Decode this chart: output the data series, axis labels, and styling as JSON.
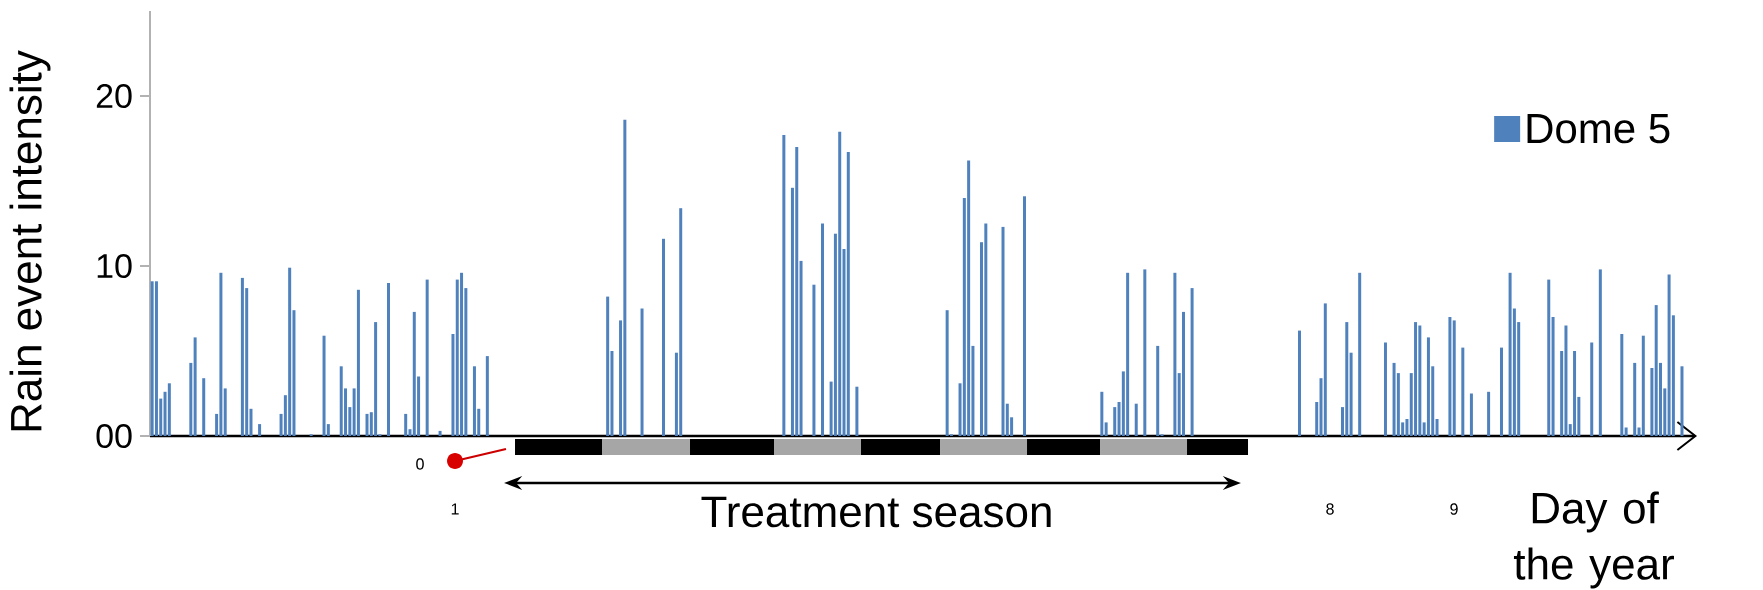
{
  "chart_data": {
    "type": "bar",
    "ylabel": "Rain event intensity",
    "xlabel": "Day of the year",
    "annotations": [
      "Treatment season",
      "0",
      "1",
      "8",
      "9"
    ],
    "categories": [
      null,
      null,
      null,
      null,
      null,
      null,
      null,
      null,
      null,
      null,
      null,
      null,
      null,
      null,
      null,
      null,
      null,
      null,
      null,
      null,
      null,
      null,
      null,
      null,
      null,
      null,
      null,
      null,
      null,
      null,
      null,
      null,
      null,
      null,
      null,
      null,
      null,
      null,
      null,
      null,
      null,
      null,
      null,
      null,
      null,
      null,
      null,
      null,
      null,
      null,
      null,
      null,
      null,
      null,
      null,
      null,
      null,
      null,
      null,
      null,
      null,
      null,
      null,
      null,
      null,
      null,
      null,
      null,
      null,
      null,
      null,
      null,
      null,
      null,
      null,
      null,
      null,
      null,
      null,
      null,
      null,
      null,
      null,
      null,
      null,
      null,
      null,
      null,
      null,
      null,
      null,
      null,
      null,
      null,
      null,
      null,
      null,
      null,
      null,
      null,
      null,
      null,
      null,
      null,
      null,
      null,
      null,
      null,
      null,
      null,
      null,
      null,
      null,
      null,
      null,
      null,
      null,
      null,
      null,
      null,
      null,
      null,
      null,
      null,
      null,
      null,
      null,
      null,
      null,
      null,
      null,
      null,
      null,
      null,
      null,
      null,
      null,
      null,
      null,
      null,
      null,
      null,
      null,
      null,
      null,
      null,
      null,
      null,
      null,
      null,
      null,
      null,
      null,
      null,
      null,
      null,
      null,
      null,
      null,
      null,
      null,
      null,
      null,
      null,
      null,
      null,
      null,
      null,
      null,
      null,
      null,
      null,
      null,
      null,
      null,
      null,
      null,
      null,
      null,
      null,
      null,
      null,
      null,
      null,
      null,
      null,
      null,
      null,
      null,
      null,
      null,
      null,
      null,
      null,
      null,
      null,
      null,
      null,
      null,
      null,
      null,
      null,
      null,
      null,
      null,
      null,
      null,
      null,
      null,
      null,
      null,
      null,
      null,
      null,
      null,
      null,
      null,
      null,
      null,
      null,
      null,
      null,
      null,
      null,
      null,
      null,
      null,
      null,
      null,
      null,
      null,
      null,
      null,
      null,
      null,
      null,
      null,
      null,
      null,
      null,
      null,
      null,
      null,
      null,
      null,
      null,
      null,
      null,
      null,
      null,
      null,
      null,
      null,
      null,
      null,
      null,
      null,
      null,
      null,
      null,
      null,
      null,
      null,
      null,
      null,
      null,
      null,
      null,
      null,
      null,
      null,
      null,
      null,
      null,
      null,
      null,
      null,
      null,
      null,
      null,
      null,
      null,
      null,
      null,
      null,
      null,
      null,
      null,
      null,
      null,
      null,
      null,
      null,
      null,
      null,
      null,
      null,
      null,
      null,
      null,
      null,
      null,
      null,
      null,
      null,
      null,
      null,
      null,
      null,
      null,
      null,
      null,
      null,
      null,
      null,
      null,
      null,
      null,
      null,
      null,
      null,
      null,
      null,
      null,
      null,
      null,
      null,
      null,
      null,
      null,
      null,
      null,
      null,
      null,
      null,
      null,
      null,
      null,
      null,
      null,
      null,
      null,
      null,
      null,
      null,
      null,
      null,
      null,
      null,
      null,
      null,
      null,
      null,
      null,
      null,
      null,
      null,
      null,
      null,
      null
    ],
    "series": [
      {
        "name": "Dome 5",
        "color": "#4f81bd",
        "values": [
          9.1,
          9.1,
          2.2,
          2.6,
          3.1,
          null,
          null,
          null,
          null,
          4.3,
          5.8,
          null,
          3.4,
          null,
          null,
          1.3,
          9.6,
          2.8,
          null,
          null,
          null,
          9.3,
          8.7,
          1.6,
          null,
          0.7,
          null,
          null,
          null,
          null,
          1.3,
          2.4,
          9.9,
          7.4,
          null,
          null,
          null,
          0.1,
          null,
          null,
          5.9,
          0.7,
          null,
          null,
          4.1,
          2.8,
          1.7,
          2.8,
          8.6,
          null,
          1.3,
          1.4,
          6.7,
          0.1,
          null,
          9.0,
          null,
          null,
          null,
          1.3,
          0.4,
          7.3,
          3.5,
          null,
          9.2,
          null,
          null,
          0.3,
          null,
          null,
          6.0,
          9.2,
          9.6,
          8.7,
          null,
          4.1,
          1.6,
          null,
          4.7,
          null,
          null,
          null,
          null,
          null,
          null,
          null,
          null,
          null,
          null,
          null,
          null,
          null,
          null,
          null,
          null,
          null,
          null,
          null,
          null,
          null,
          null,
          null,
          null,
          null,
          null,
          null,
          8.2,
          5.0,
          null,
          6.8,
          18.6,
          null,
          null,
          null,
          7.5,
          null,
          null,
          null,
          null,
          11.6,
          null,
          null,
          4.9,
          13.4,
          null,
          null,
          null,
          null,
          null,
          null,
          null,
          null,
          null,
          null,
          null,
          null,
          null,
          null,
          null,
          null,
          null,
          null,
          null,
          null,
          null,
          null,
          null,
          17.7,
          null,
          14.6,
          17.0,
          10.3,
          null,
          null,
          8.9,
          null,
          12.5,
          null,
          3.2,
          11.9,
          17.9,
          11.0,
          16.7,
          null,
          2.9,
          null,
          null,
          null,
          null,
          null,
          null,
          null,
          null,
          null,
          null,
          null,
          null,
          null,
          null,
          null,
          null,
          null,
          null,
          null,
          null,
          7.4,
          0.1,
          null,
          3.1,
          14.0,
          16.2,
          5.3,
          null,
          11.4,
          12.5,
          null,
          null,
          null,
          12.3,
          1.9,
          1.1,
          null,
          null,
          14.1,
          null,
          null,
          null,
          null,
          null,
          null,
          null,
          null,
          null,
          null,
          null,
          null,
          null,
          null,
          null,
          null,
          null,
          2.6,
          0.8,
          null,
          1.7,
          2.0,
          3.8,
          9.6,
          null,
          1.9,
          null,
          9.8,
          null,
          null,
          5.3,
          0.1,
          null,
          null,
          9.6,
          3.7,
          7.3,
          null,
          8.7,
          null,
          null,
          null,
          null,
          null,
          null,
          null,
          null,
          null,
          null,
          null,
          null,
          null,
          null,
          null,
          null,
          null,
          null,
          null,
          null,
          null,
          null,
          null,
          null,
          6.2,
          null,
          null,
          null,
          2.0,
          3.4,
          7.8,
          null,
          null,
          null,
          1.7,
          6.7,
          4.9,
          null,
          9.6,
          null,
          null,
          null,
          null,
          null,
          5.5,
          null,
          4.3,
          3.7,
          0.8,
          1.0,
          3.7,
          6.7,
          6.5,
          0.8,
          5.8,
          4.1,
          1.0,
          null,
          null,
          7.0,
          6.8,
          null,
          5.2,
          null,
          2.5,
          null,
          null,
          null,
          2.6,
          null,
          null,
          5.2,
          null,
          9.6,
          7.5,
          6.7,
          null,
          null,
          null,
          null,
          null,
          null,
          9.2,
          7.0,
          null,
          5.0,
          6.5,
          0.7,
          5.0,
          2.3,
          null,
          null,
          5.5,
          null,
          9.8,
          null,
          null,
          null,
          null,
          6.0,
          0.5,
          null,
          4.3,
          0.5,
          5.9,
          null,
          4.0,
          7.7,
          4.3,
          2.8,
          9.5,
          7.1,
          null,
          4.1,
          null,
          null,
          null
        ]
      }
    ],
    "ylim": [
      0,
      25
    ],
    "yticks": [
      {
        "value": 0,
        "label": "00"
      },
      10,
      20
    ],
    "legend": "top right"
  }
}
